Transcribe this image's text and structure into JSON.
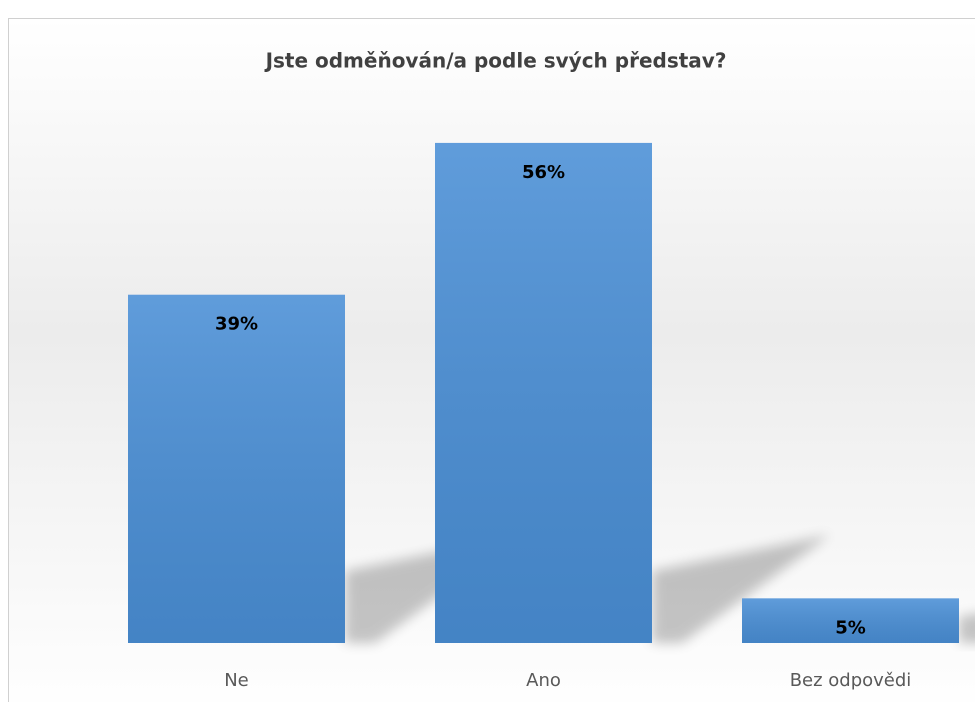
{
  "chart_data": {
    "type": "bar",
    "title": "Jste odměňován/a podle svých představ?",
    "categories": [
      "Ne",
      "Ano",
      "Bez odpovědi"
    ],
    "values": [
      39,
      56,
      5
    ],
    "value_labels": [
      "39%",
      "56%",
      "5%"
    ],
    "color": "#4a8fd6"
  }
}
